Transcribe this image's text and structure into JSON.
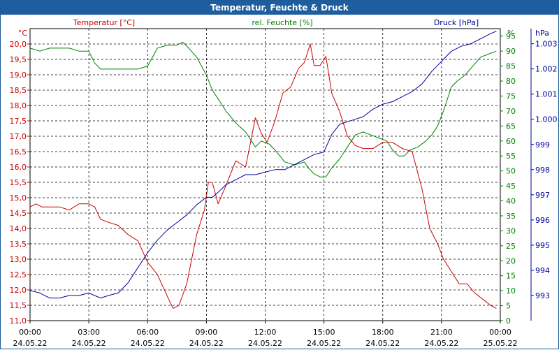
{
  "window": {
    "title": "Temperatur, Feuchte & Druck"
  },
  "chart_data": {
    "type": "line",
    "title": "Temperatur, Feuchte & Druck",
    "xlabel": "",
    "x_ticks": [
      {
        "time": "00:00",
        "date": "24.05.22"
      },
      {
        "time": "03:00",
        "date": "24.05.22"
      },
      {
        "time": "06:00",
        "date": "24.05.22"
      },
      {
        "time": "09:00",
        "date": "24.05.22"
      },
      {
        "time": "12:00",
        "date": "24.05.22"
      },
      {
        "time": "15:00",
        "date": "24.05.22"
      },
      {
        "time": "18:00",
        "date": "24.05.22"
      },
      {
        "time": "21:00",
        "date": "24.05.22"
      },
      {
        "time": "00:00",
        "date": "25.05.22"
      }
    ],
    "xlim": [
      0,
      24
    ],
    "grid": true,
    "axes": {
      "temperature": {
        "unit": "°C",
        "label": "Temperatur [°C]",
        "color": "#cc0000",
        "ylim": [
          11.0,
          20.5
        ],
        "ticks": [
          "11,0",
          "11,5",
          "12,0",
          "12,5",
          "13,0",
          "13,5",
          "14,0",
          "14,5",
          "15,0",
          "15,5",
          "16,0",
          "16,5",
          "17,0",
          "17,5",
          "18,0",
          "18,5",
          "19,0",
          "19,5",
          "20,0"
        ]
      },
      "humidity": {
        "unit": "%",
        "label": "rel. Feuchte [%]",
        "color": "#008000",
        "ylim": [
          0,
          97.5
        ],
        "ticks": [
          "0",
          "5",
          "10",
          "15",
          "20",
          "25",
          "30",
          "35",
          "40",
          "45",
          "50",
          "55",
          "60",
          "65",
          "70",
          "75",
          "80",
          "85",
          "90",
          "95"
        ]
      },
      "pressure": {
        "unit": "hPa",
        "label": "Druck [hPa]",
        "color": "#000099",
        "ylim": [
          992.0,
          1003.6
        ],
        "ticks": [
          "993",
          "994",
          "995",
          "996",
          "997",
          "998",
          "999",
          "1.000",
          "1.001",
          "1.002",
          "1.003"
        ]
      }
    },
    "series": [
      {
        "name": "Temperatur [°C]",
        "axis": "temperature",
        "x": [
          0,
          0.3,
          0.6,
          1,
          1.5,
          2,
          2.5,
          3,
          3.3,
          3.6,
          4,
          4.5,
          5,
          5.5,
          6,
          6.5,
          7,
          7.3,
          7.6,
          8,
          8.5,
          8.9,
          9.1,
          9.3,
          9.6,
          10,
          10.5,
          11,
          11.5,
          11.8,
          12.1,
          12.5,
          12.9,
          13.3,
          13.7,
          14.0,
          14.3,
          14.5,
          14.8,
          15.1,
          15.4,
          15.8,
          16.2,
          16.6,
          17,
          17.5,
          18,
          18.5,
          19,
          19.5,
          20,
          20.4,
          20.8,
          21.1,
          21.5,
          21.9,
          22.3,
          22.7,
          23.1,
          23.5,
          23.8
        ],
        "values": [
          14.7,
          14.8,
          14.7,
          14.7,
          14.7,
          14.6,
          14.8,
          14.8,
          14.7,
          14.3,
          14.2,
          14.1,
          13.8,
          13.6,
          12.9,
          12.5,
          11.8,
          11.4,
          11.5,
          12.2,
          13.8,
          14.6,
          15.5,
          15.5,
          14.8,
          15.4,
          16.2,
          16.0,
          17.6,
          17.1,
          16.8,
          17.5,
          18.4,
          18.6,
          19.2,
          19.4,
          20.0,
          19.3,
          19.3,
          19.6,
          18.4,
          17.8,
          17.0,
          16.7,
          16.6,
          16.6,
          16.8,
          16.8,
          16.6,
          16.5,
          15.3,
          14.0,
          13.5,
          13.0,
          12.6,
          12.2,
          12.2,
          11.9,
          11.7,
          11.5,
          11.4
        ]
      },
      {
        "name": "rel. Feuchte [%]",
        "axis": "humidity",
        "x": [
          0,
          0.5,
          1,
          1.5,
          2,
          2.5,
          3,
          3.3,
          3.6,
          4,
          4.5,
          5,
          5.5,
          6,
          6.5,
          7,
          7.5,
          7.8,
          8.1,
          8.5,
          9,
          9.3,
          9.6,
          10,
          10.5,
          11,
          11.5,
          11.8,
          12.2,
          12.5,
          13,
          13.5,
          14,
          14.2,
          14.5,
          14.8,
          15.1,
          15.4,
          15.8,
          16.2,
          16.6,
          17,
          17.4,
          17.8,
          18.2,
          18.5,
          18.8,
          19.1,
          19.4,
          19.8,
          20.2,
          20.5,
          20.8,
          21.1,
          21.5,
          21.8,
          22.2,
          22.6,
          23,
          23.4,
          23.8
        ],
        "values": [
          91,
          90,
          91,
          91,
          91,
          90,
          90,
          86,
          84,
          84,
          84,
          84,
          84,
          85,
          91,
          92,
          92,
          93,
          91,
          88,
          82,
          77,
          74,
          70,
          66,
          63,
          58,
          60,
          59,
          57,
          53,
          52,
          53,
          51,
          49,
          48,
          48,
          51,
          54,
          58,
          62,
          63,
          62,
          61,
          60,
          57,
          55,
          55,
          57,
          58,
          60,
          62,
          65,
          70,
          78,
          80,
          82,
          85,
          88,
          89,
          90
        ]
      },
      {
        "name": "Druck [hPa]",
        "axis": "pressure",
        "x": [
          0,
          0.5,
          1,
          1.5,
          2,
          2.5,
          3,
          3.3,
          3.6,
          4,
          4.5,
          5,
          5.5,
          6,
          6.5,
          7,
          7.5,
          8,
          8.5,
          9,
          9.3,
          9.6,
          10,
          10.5,
          11,
          11.5,
          12,
          12.5,
          13,
          13.5,
          14,
          14.5,
          15,
          15.4,
          15.8,
          16.2,
          16.6,
          17,
          17.5,
          18,
          18.5,
          19,
          19.5,
          20,
          20.5,
          21,
          21.5,
          22,
          22.5,
          23,
          23.5,
          23.8
        ],
        "values": [
          993.2,
          993.1,
          992.9,
          992.9,
          993.0,
          993.0,
          993.1,
          993.0,
          992.9,
          993.0,
          993.1,
          993.5,
          994.1,
          994.7,
          995.2,
          995.6,
          995.9,
          996.2,
          996.6,
          996.9,
          996.9,
          997.1,
          997.4,
          997.6,
          997.8,
          997.8,
          997.9,
          998.0,
          998.0,
          998.2,
          998.4,
          998.6,
          998.7,
          999.4,
          999.8,
          999.9,
          1000.0,
          1000.1,
          1000.4,
          1000.6,
          1000.7,
          1000.9,
          1001.1,
          1001.4,
          1001.9,
          1002.3,
          1002.7,
          1002.9,
          1003.0,
          1003.2,
          1003.4,
          1003.5
        ]
      }
    ]
  }
}
